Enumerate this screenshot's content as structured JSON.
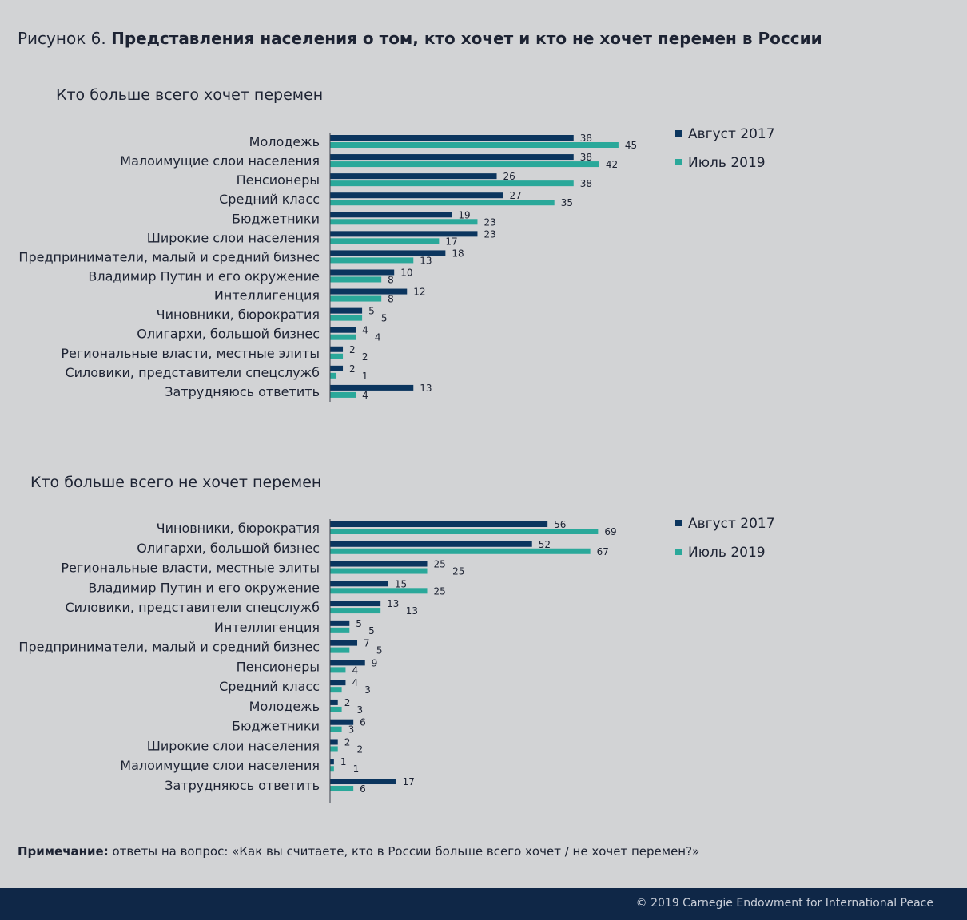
{
  "title": {
    "prefix": "Рисунок 6.",
    "text": "Представления населения о том, кто хочет и кто не хочет перемен в России"
  },
  "note": {
    "label": "Примечание:",
    "text": "ответы на вопрос: «Как вы считаете, кто в России больше всего хочет / не хочет перемен?»"
  },
  "footer": "© 2019 Carnegie Endowment for International Peace",
  "colors": {
    "Август 2017": "#0b355e",
    "Июль 2019": "#2aa89a",
    "background": "#d2d3d5",
    "footer": "#0f2747"
  },
  "chart_data": [
    {
      "type": "bar",
      "orientation": "horizontal",
      "title": "Кто больше всего хочет перемен",
      "legend_position": "right",
      "grid": false,
      "categories": [
        "Молодежь",
        "Малоимущие слои населения",
        "Пенсионеры",
        "Средний класс",
        "Бюджетники",
        "Широкие слои населения",
        "Предприниматели, малый и средний бизнес",
        "Владимир Путин и его окружение",
        "Интеллигенция",
        "Чиновники, бюрократия",
        "Олигархи, большой бизнес",
        "Региональные власти, местные элиты",
        "Силовики, представители спецслужб",
        "Затрудняюсь ответить"
      ],
      "series": [
        {
          "name": "Август 2017",
          "values": [
            38,
            38,
            26,
            27,
            19,
            23,
            18,
            10,
            12,
            5,
            4,
            2,
            2,
            13
          ]
        },
        {
          "name": "Июль 2019",
          "values": [
            45,
            42,
            38,
            35,
            23,
            17,
            13,
            8,
            8,
            5,
            4,
            2,
            1,
            4
          ]
        }
      ]
    },
    {
      "type": "bar",
      "orientation": "horizontal",
      "title": "Кто больше всего не хочет перемен",
      "legend_position": "right",
      "grid": false,
      "categories": [
        "Чиновники, бюрократия",
        "Олигархи, большой бизнес",
        "Региональные власти, местные элиты",
        "Владимир Путин и его окружение",
        "Силовики, представители спецслужб",
        "Интеллигенция",
        "Предприниматели, малый и средний бизнес",
        "Пенсионеры",
        "Средний класс",
        "Молодежь",
        "Бюджетники",
        "Широкие слои населения",
        "Малоимущие слои населения",
        "Затрудняюсь ответить"
      ],
      "series": [
        {
          "name": "Август 2017",
          "values": [
            56,
            52,
            25,
            15,
            13,
            5,
            7,
            9,
            4,
            2,
            6,
            2,
            1,
            17
          ]
        },
        {
          "name": "Июль 2019",
          "values": [
            69,
            67,
            25,
            25,
            13,
            5,
            5,
            4,
            3,
            3,
            3,
            2,
            1,
            6
          ]
        }
      ]
    }
  ]
}
